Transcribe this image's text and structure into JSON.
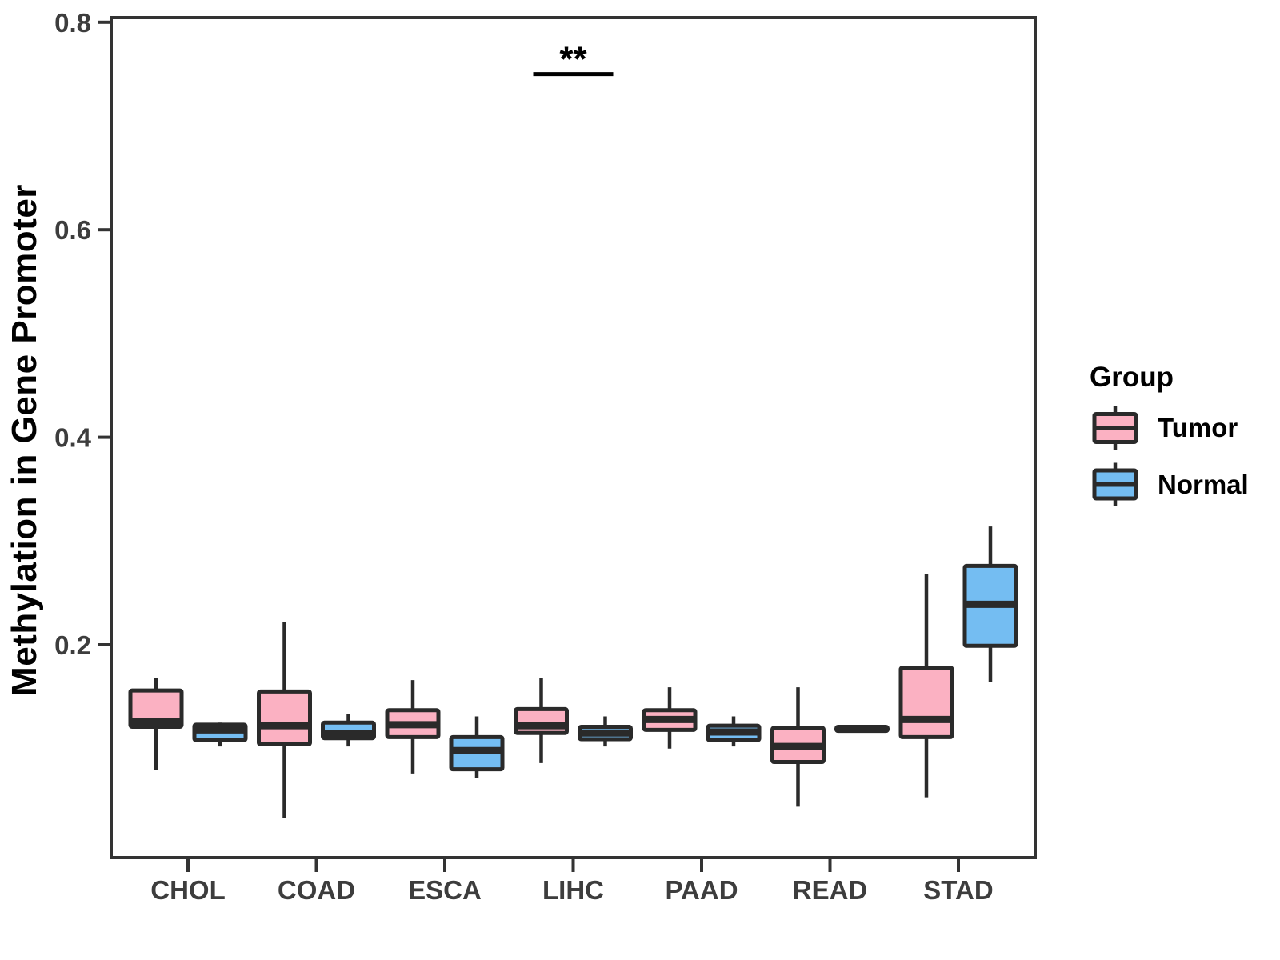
{
  "figure": {
    "background": "#ffffff",
    "y_axis": {
      "title": "Methylation in Gene Promoter",
      "tick_values": [
        0.2,
        0.4,
        0.6,
        0.8
      ],
      "tick_labels": [
        "0.2",
        "0.4",
        "0.6",
        "0.8"
      ]
    },
    "x_axis": {
      "categories": [
        "CHOL",
        "COAD",
        "ESCA",
        "LIHC",
        "PAAD",
        "READ",
        "STAD"
      ]
    },
    "legend": {
      "title": "Group",
      "entries": [
        {
          "label": "Tumor",
          "color": "#FBB1C2"
        },
        {
          "label": "Normal",
          "color": "#74BDF2"
        }
      ]
    },
    "annotation": {
      "text": "**",
      "category": "LIHC",
      "line_y": 0.75
    },
    "colors": {
      "box_outline": "#2A2A2A",
      "panel_border": "#333333",
      "tick_mark": "#333333",
      "tick_label_text": "#3D3D3D",
      "annotation_text": "#000000"
    }
  },
  "chart_data": {
    "type": "boxplot",
    "title": "",
    "xlabel": "",
    "ylabel": "Methylation in Gene Promoter",
    "categories": [
      "CHOL",
      "COAD",
      "ESCA",
      "LIHC",
      "PAAD",
      "READ",
      "STAD"
    ],
    "groups": [
      "Tumor",
      "Normal"
    ],
    "ylim": [
      0,
      0.8
    ],
    "yticks": [
      0.2,
      0.4,
      0.6,
      0.8
    ],
    "grid": false,
    "legend_position": "right",
    "legend_title": "Group",
    "series": [
      {
        "name": "Tumor",
        "fill": "#FBB1C2",
        "boxes": [
          {
            "category": "CHOL",
            "min": 0.079,
            "q1": 0.121,
            "median": 0.126,
            "q3": 0.156,
            "max": 0.168
          },
          {
            "category": "COAD",
            "min": 0.033,
            "q1": 0.104,
            "median": 0.122,
            "q3": 0.155,
            "max": 0.222
          },
          {
            "category": "ESCA",
            "min": 0.076,
            "q1": 0.111,
            "median": 0.123,
            "q3": 0.137,
            "max": 0.166
          },
          {
            "category": "LIHC",
            "min": 0.086,
            "q1": 0.115,
            "median": 0.122,
            "q3": 0.138,
            "max": 0.168
          },
          {
            "category": "PAAD",
            "min": 0.1,
            "q1": 0.118,
            "median": 0.128,
            "q3": 0.137,
            "max": 0.159
          },
          {
            "category": "READ",
            "min": 0.044,
            "q1": 0.087,
            "median": 0.102,
            "q3": 0.12,
            "max": 0.159
          },
          {
            "category": "STAD",
            "min": 0.053,
            "q1": 0.111,
            "median": 0.128,
            "q3": 0.178,
            "max": 0.268
          }
        ]
      },
      {
        "name": "Normal",
        "fill": "#74BDF2",
        "boxes": [
          {
            "category": "CHOL",
            "min": 0.102,
            "q1": 0.108,
            "median": 0.118,
            "q3": 0.123,
            "max": 0.125
          },
          {
            "category": "COAD",
            "min": 0.102,
            "q1": 0.11,
            "median": 0.114,
            "q3": 0.125,
            "max": 0.133
          },
          {
            "category": "ESCA",
            "min": 0.072,
            "q1": 0.08,
            "median": 0.098,
            "q3": 0.111,
            "max": 0.131
          },
          {
            "category": "LIHC",
            "min": 0.102,
            "q1": 0.109,
            "median": 0.115,
            "q3": 0.121,
            "max": 0.131
          },
          {
            "category": "PAAD",
            "min": 0.102,
            "q1": 0.108,
            "median": 0.116,
            "q3": 0.122,
            "max": 0.131
          },
          {
            "category": "READ",
            "min": 0.117,
            "q1": 0.117,
            "median": 0.119,
            "q3": 0.121,
            "max": 0.121
          },
          {
            "category": "STAD",
            "min": 0.164,
            "q1": 0.199,
            "median": 0.239,
            "q3": 0.276,
            "max": 0.314
          }
        ]
      }
    ],
    "annotations": [
      {
        "text": "**",
        "category": "LIHC",
        "y": 0.75
      }
    ]
  }
}
